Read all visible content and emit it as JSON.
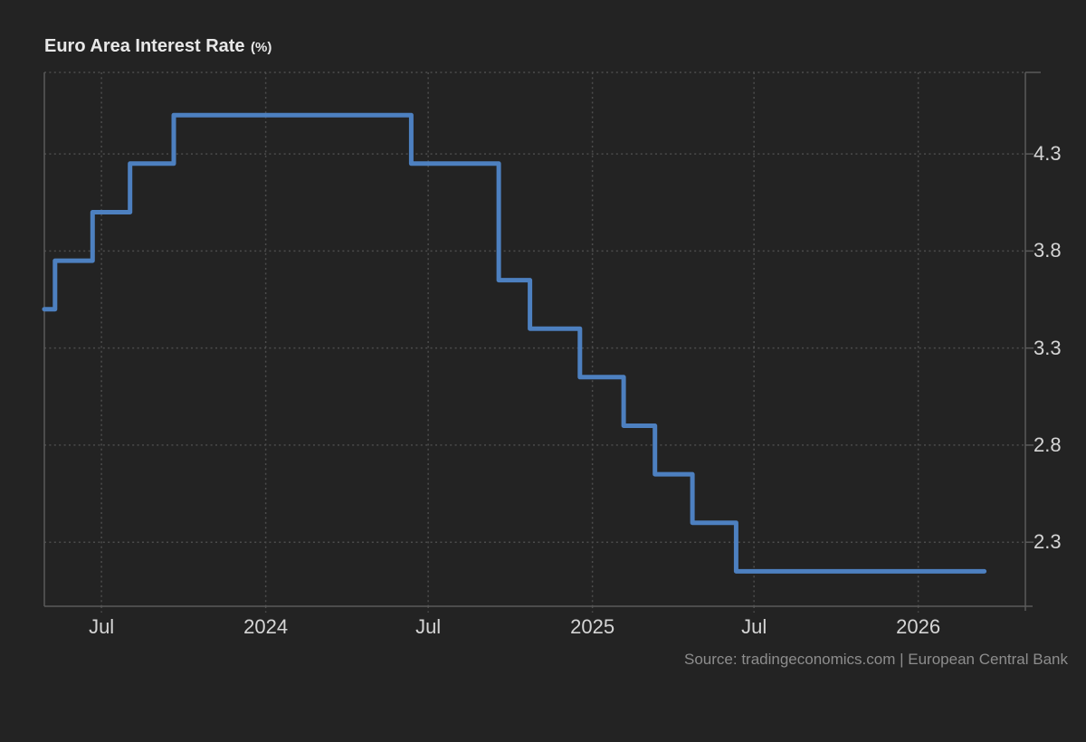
{
  "page": {
    "title": "Euro Area Interest Rate",
    "title_unit": "(%)",
    "source": "Source: tradingeconomics.com | European Central Bank"
  },
  "colors": {
    "background": "#232323",
    "line": "#4d80c0",
    "grid": "#4c4c4c",
    "axis": "#5a5a5a",
    "title_text": "#e8e8e8",
    "axis_text": "#d5d5d5",
    "source_text": "#8d8d8d"
  },
  "chart_data": {
    "type": "line",
    "subtype": "step",
    "title": "Euro Area Interest Rate (%)",
    "ylabel": "",
    "xlabel": "",
    "grid": "dotted",
    "legend": false,
    "x_domain": [
      "2023-04-28",
      "2026-05-01"
    ],
    "ylim": [
      1.97,
      4.72
    ],
    "x_ticks": [
      {
        "date": "2023-07-01",
        "label": "Jul"
      },
      {
        "date": "2024-01-01",
        "label": "2024"
      },
      {
        "date": "2024-07-01",
        "label": "Jul"
      },
      {
        "date": "2025-01-01",
        "label": "2025"
      },
      {
        "date": "2025-07-01",
        "label": "Jul"
      },
      {
        "date": "2026-01-01",
        "label": "2026"
      }
    ],
    "y_ticks": [
      {
        "value": 4.3,
        "label": "4.3"
      },
      {
        "value": 3.8,
        "label": "3.8"
      },
      {
        "value": 3.3,
        "label": "3.3"
      },
      {
        "value": 2.8,
        "label": "2.8"
      },
      {
        "value": 2.3,
        "label": "2.3"
      }
    ],
    "series": [
      {
        "name": "Euro Area Interest Rate",
        "points": [
          {
            "date": "2023-04-28",
            "value": 3.5
          },
          {
            "date": "2023-05-10",
            "value": 3.75
          },
          {
            "date": "2023-06-21",
            "value": 4.0
          },
          {
            "date": "2023-08-02",
            "value": 4.25
          },
          {
            "date": "2023-09-20",
            "value": 4.5
          },
          {
            "date": "2024-06-12",
            "value": 4.25
          },
          {
            "date": "2024-09-18",
            "value": 3.65
          },
          {
            "date": "2024-10-23",
            "value": 3.4
          },
          {
            "date": "2024-12-18",
            "value": 3.15
          },
          {
            "date": "2025-02-05",
            "value": 2.9
          },
          {
            "date": "2025-03-12",
            "value": 2.65
          },
          {
            "date": "2025-04-23",
            "value": 2.4
          },
          {
            "date": "2025-06-11",
            "value": 2.15
          },
          {
            "date": "2026-03-16",
            "value": 2.15
          }
        ]
      }
    ]
  }
}
